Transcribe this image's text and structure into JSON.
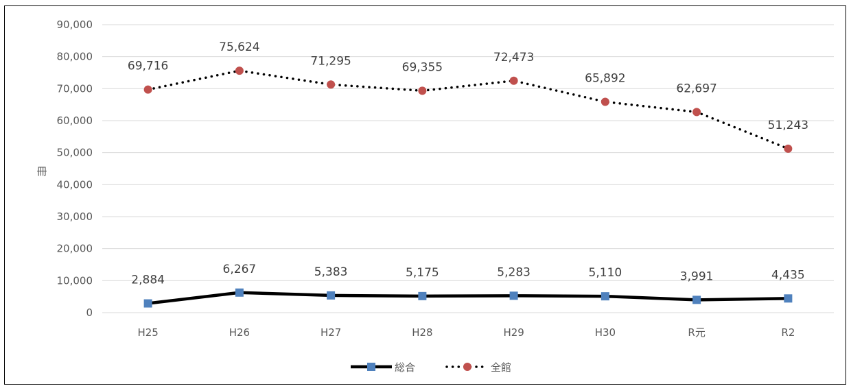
{
  "chart_data": {
    "type": "line",
    "title": "",
    "xlabel": "",
    "ylabel": "冊",
    "categories": [
      "H25",
      "H26",
      "H27",
      "H28",
      "H29",
      "H30",
      "R元",
      "R2"
    ],
    "ylim": [
      0,
      90000
    ],
    "yticks": [
      "0",
      "10,000",
      "20,000",
      "30,000",
      "40,000",
      "50,000",
      "60,000",
      "70,000",
      "80,000",
      "90,000"
    ],
    "grid": true,
    "legend_position": "bottom",
    "series": [
      {
        "name": "総合",
        "values": [
          2884,
          6267,
          5383,
          5175,
          5283,
          5110,
          3991,
          4435
        ],
        "labels": [
          "2,884",
          "6,267",
          "5,383",
          "5,175",
          "5,283",
          "5,110",
          "3,991",
          "4,435"
        ],
        "line_color": "#000000",
        "marker_color": "#4f81bd",
        "marker": "square",
        "line_style": "solid"
      },
      {
        "name": "全館",
        "values": [
          69716,
          75624,
          71295,
          69355,
          72473,
          65892,
          62697,
          51243
        ],
        "labels": [
          "69,716",
          "75,624",
          "71,295",
          "69,355",
          "72,473",
          "65,892",
          "62,697",
          "51,243"
        ],
        "line_color": "#000000",
        "marker_color": "#c0504d",
        "marker": "circle",
        "line_style": "dotted"
      }
    ]
  }
}
